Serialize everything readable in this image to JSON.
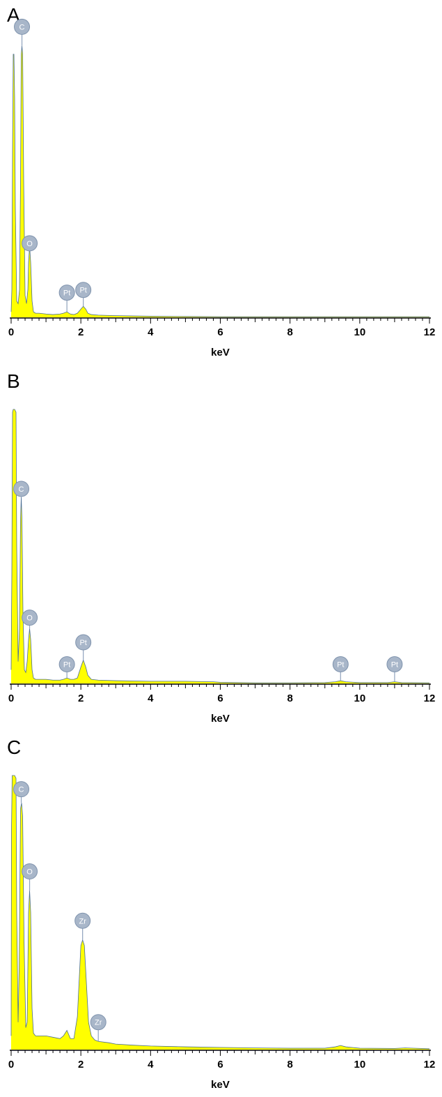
{
  "chart_data": [
    {
      "type": "area",
      "panel_label": "A",
      "xlabel": "keV",
      "xlim": [
        0,
        12
      ],
      "x_ticks": [
        0,
        2,
        4,
        6,
        8,
        10,
        12
      ],
      "ylim": [
        0,
        100
      ],
      "fill_color": "#ffff00",
      "line_color": "#4a6d94",
      "series": [
        {
          "x": [
            0,
            0.02,
            0.04,
            0.06,
            0.08,
            0.1,
            0.12,
            0.16,
            0.2,
            0.24,
            0.27,
            0.29,
            0.31,
            0.33,
            0.36,
            0.4,
            0.44,
            0.48,
            0.5,
            0.53,
            0.56,
            0.6,
            0.64,
            0.7,
            0.8,
            1.0,
            1.2,
            1.4,
            1.5,
            1.6,
            1.7,
            1.8,
            1.9,
            2.0,
            2.07,
            2.14,
            2.2,
            2.3,
            2.5,
            3.0,
            3.5,
            4.0,
            5.0,
            6.0,
            8.0,
            10.0,
            12.0
          ],
          "y": [
            2,
            10,
            60,
            96,
            96,
            80,
            40,
            6,
            5,
            10,
            50,
            96,
            99,
            96,
            50,
            8,
            5,
            10,
            20,
            26,
            20,
            6,
            2,
            1.5,
            1.5,
            1.2,
            1,
            1.2,
            1.5,
            2,
            1.2,
            1,
            1.5,
            3,
            4,
            3,
            1.5,
            1,
            0.8,
            0.6,
            0.5,
            0.4,
            0.3,
            0.2,
            0.2,
            0.2,
            0.2
          ]
        }
      ],
      "annotations": [
        {
          "label": "C",
          "x": 0.31,
          "y": 99,
          "marker_y": 106
        },
        {
          "label": "O",
          "x": 0.53,
          "y": 26,
          "marker_y": 27
        },
        {
          "label": "Pt",
          "x": 1.6,
          "y": 2,
          "marker_y": 9
        },
        {
          "label": "Pt",
          "x": 2.07,
          "y": 4,
          "marker_y": 10
        }
      ]
    },
    {
      "type": "area",
      "panel_label": "B",
      "xlabel": "keV",
      "xlim": [
        0,
        12
      ],
      "x_ticks": [
        0,
        2,
        4,
        6,
        8,
        10,
        12
      ],
      "ylim": [
        0,
        100
      ],
      "fill_color": "#ffff00",
      "line_color": "#4a6d94",
      "series": [
        {
          "x": [
            0,
            0.02,
            0.04,
            0.06,
            0.1,
            0.14,
            0.16,
            0.2,
            0.24,
            0.27,
            0.29,
            0.31,
            0.34,
            0.38,
            0.42,
            0.46,
            0.5,
            0.53,
            0.56,
            0.6,
            0.64,
            0.7,
            0.8,
            1.0,
            1.2,
            1.4,
            1.5,
            1.6,
            1.7,
            1.8,
            1.9,
            2.0,
            2.07,
            2.14,
            2.2,
            2.3,
            2.5,
            3.0,
            4.0,
            5.0,
            5.8,
            6.0,
            6.5,
            7.0,
            8.0,
            9.0,
            9.3,
            9.45,
            9.6,
            10.0,
            10.8,
            11.0,
            11.2,
            12.0
          ],
          "y": [
            5,
            40,
            99,
            100,
            100,
            99,
            50,
            8,
            20,
            60,
            68,
            60,
            25,
            5,
            4,
            8,
            16,
            20,
            16,
            5,
            2,
            1.5,
            1.5,
            1.5,
            1.2,
            1.2,
            1.5,
            2,
            1.5,
            1.5,
            2,
            6,
            8.5,
            6,
            3,
            1.5,
            1.2,
            1,
            0.8,
            0.8,
            0.6,
            0.4,
            0.3,
            0.2,
            0.2,
            0.3,
            0.6,
            1,
            0.6,
            0.3,
            0.3,
            0.6,
            0.3,
            0.2
          ]
        }
      ],
      "annotations": [
        {
          "label": "C",
          "x": 0.29,
          "y": 68,
          "marker_y": 71
        },
        {
          "label": "O",
          "x": 0.53,
          "y": 20,
          "marker_y": 24
        },
        {
          "label": "Pt",
          "x": 1.6,
          "y": 2,
          "marker_y": 7
        },
        {
          "label": "Pt",
          "x": 2.07,
          "y": 8.5,
          "marker_y": 15
        },
        {
          "label": "Pt",
          "x": 9.45,
          "y": 1,
          "marker_y": 7
        },
        {
          "label": "Pt",
          "x": 11.0,
          "y": 0.6,
          "marker_y": 7
        }
      ]
    },
    {
      "type": "area",
      "panel_label": "C",
      "xlabel": "keV",
      "xlim": [
        0,
        12
      ],
      "x_ticks": [
        0,
        2,
        4,
        6,
        8,
        10,
        12
      ],
      "ylim": [
        0,
        100
      ],
      "fill_color": "#ffff00",
      "line_color": "#4a6d94",
      "series": [
        {
          "x": [
            0,
            0.01,
            0.03,
            0.06,
            0.1,
            0.14,
            0.16,
            0.2,
            0.23,
            0.27,
            0.3,
            0.33,
            0.37,
            0.42,
            0.46,
            0.5,
            0.53,
            0.56,
            0.6,
            0.64,
            0.7,
            0.8,
            1.0,
            1.2,
            1.4,
            1.5,
            1.6,
            1.7,
            1.8,
            1.9,
            2.0,
            2.05,
            2.1,
            2.16,
            2.22,
            2.3,
            2.4,
            2.5,
            2.8,
            3.0,
            3.5,
            4.0,
            5.0,
            6.0,
            7.0,
            8.0,
            9.0,
            9.3,
            9.45,
            9.6,
            10.0,
            11.0,
            11.3,
            12.0
          ],
          "y": [
            5,
            80,
            100,
            100,
            100,
            99,
            50,
            10,
            30,
            88,
            90,
            85,
            40,
            8,
            10,
            50,
            58,
            50,
            15,
            6,
            5,
            5,
            5,
            4.5,
            4,
            5,
            7,
            4,
            4,
            12,
            38,
            40,
            38,
            24,
            10,
            5,
            3.5,
            3,
            2.5,
            2,
            1.6,
            1.3,
            1,
            0.8,
            0.6,
            0.5,
            0.5,
            1,
            1.5,
            1,
            0.5,
            0.4,
            0.6,
            0.3
          ]
        }
      ],
      "annotations": [
        {
          "label": "C",
          "x": 0.29,
          "y": 90,
          "marker_y": 95
        },
        {
          "label": "O",
          "x": 0.53,
          "y": 58,
          "marker_y": 65
        },
        {
          "label": "Zr",
          "x": 2.05,
          "y": 40,
          "marker_y": 47
        },
        {
          "label": "Zr",
          "x": 2.5,
          "y": 3,
          "marker_y": 10
        }
      ]
    }
  ]
}
